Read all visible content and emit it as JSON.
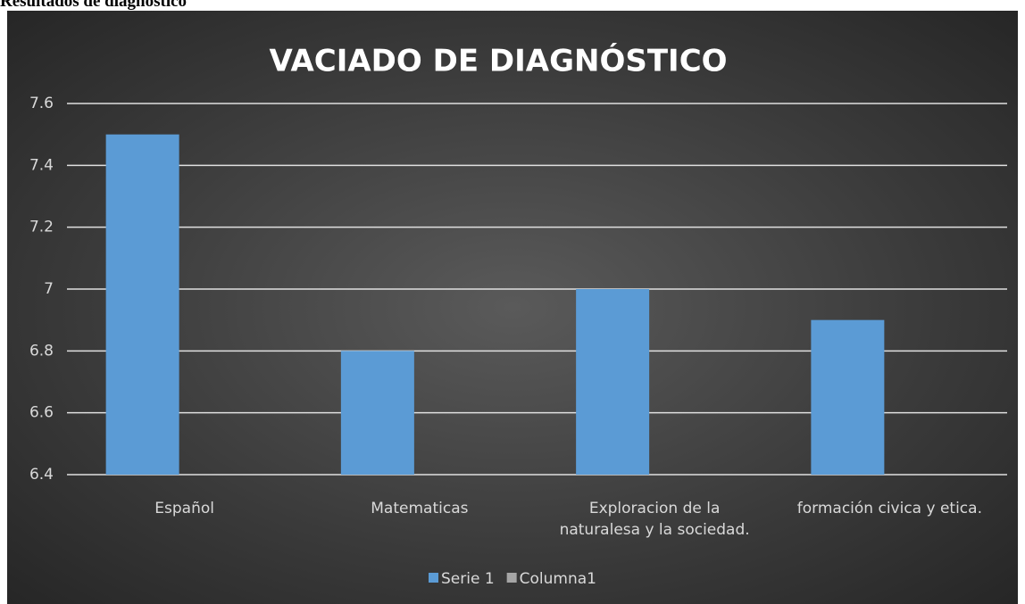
{
  "heading": "Resultados de diagnóstico",
  "chart_data": {
    "type": "bar",
    "title": "VACIADO DE DIAGNÓSTICO",
    "categories": [
      "Español",
      "Matematicas",
      "Exploracion de la naturalesa y la sociedad.",
      "formación civica y etica."
    ],
    "series": [
      {
        "name": "Serie 1",
        "color": "#5b9bd5",
        "values": [
          7.5,
          6.8,
          7.0,
          6.9
        ]
      },
      {
        "name": "Columna1",
        "color": "#a5a5a5",
        "values": [
          null,
          null,
          null,
          null
        ]
      }
    ],
    "ylim": [
      6.4,
      7.6
    ],
    "yticks": [
      6.4,
      6.6,
      6.8,
      7,
      7.2,
      7.4,
      7.6
    ],
    "grid": true,
    "legend": "bottom"
  }
}
